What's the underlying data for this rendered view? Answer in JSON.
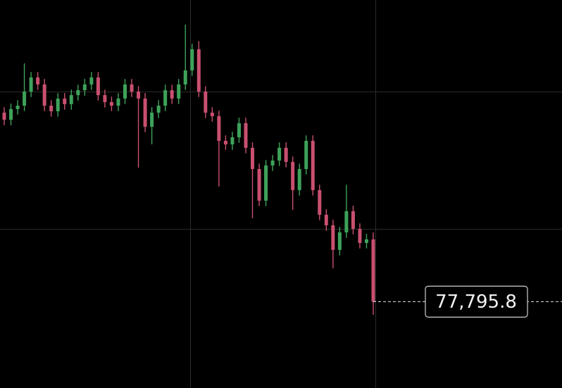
{
  "chart_data": {
    "type": "candlestick",
    "ylim": [
      77165,
      80000
    ],
    "up_color": "#3ea25a",
    "down_color": "#c9506f",
    "open": [
      79177,
      79125,
      79203,
      79228,
      79331,
      79434,
      79383,
      79228,
      79187,
      79280,
      79239,
      79305,
      79341,
      79383,
      79434,
      79305,
      79254,
      79228,
      79280,
      79383,
      79331,
      79280,
      79074,
      79177,
      79228,
      79341,
      79280,
      79383,
      79486,
      79640,
      79331,
      79177,
      79151,
      78971,
      78945,
      78997,
      79100,
      78920,
      78765,
      78534,
      78791,
      78827,
      78920,
      78817,
      78611,
      78765,
      78971,
      78611,
      78431,
      78354,
      78174,
      78302,
      78457,
      78328,
      78225,
      78251
    ],
    "high": [
      79217,
      79243,
      79268,
      79537,
      79474,
      79474,
      79423,
      79268,
      79320,
      79320,
      79345,
      79381,
      79423,
      79474,
      79474,
      79345,
      79294,
      79320,
      79423,
      79423,
      79371,
      79320,
      79217,
      79268,
      79381,
      79381,
      79423,
      79820,
      79680,
      79700,
      79371,
      79217,
      79191,
      79011,
      79037,
      79140,
      79140,
      78960,
      78805,
      78831,
      78867,
      78960,
      78960,
      78857,
      78805,
      79011,
      79011,
      78651,
      78471,
      78394,
      78342,
      78650,
      78497,
      78368,
      78291,
      78302
    ],
    "low": [
      79085,
      79085,
      79163,
      79188,
      79291,
      79343,
      79188,
      79147,
      79147,
      79199,
      79199,
      79265,
      79301,
      79343,
      79265,
      79214,
      79188,
      79188,
      79240,
      79291,
      78775,
      79034,
      78945,
      79137,
      79188,
      79240,
      79240,
      79343,
      79446,
      79291,
      79137,
      79111,
      78637,
      78905,
      78905,
      78957,
      78880,
      78405,
      78494,
      78494,
      78751,
      78787,
      78777,
      78467,
      78571,
      78725,
      78571,
      78391,
      78314,
      78040,
      78134,
      78262,
      78288,
      78185,
      78185,
      77700
    ],
    "close": [
      79125,
      79203,
      79228,
      79331,
      79434,
      79383,
      79228,
      79187,
      79280,
      79239,
      79305,
      79341,
      79383,
      79434,
      79305,
      79254,
      79228,
      79280,
      79383,
      79331,
      79280,
      79074,
      79177,
      79228,
      79341,
      79280,
      79383,
      79486,
      79640,
      79331,
      79177,
      79151,
      78971,
      78945,
      78997,
      79100,
      78920,
      78765,
      78534,
      78791,
      78827,
      78920,
      78817,
      78611,
      78765,
      78971,
      78611,
      78431,
      78354,
      78174,
      78302,
      78457,
      78328,
      78225,
      78251,
      77795.8
    ],
    "price_line": {
      "value": 77795.8,
      "label": "77,795.8"
    }
  }
}
